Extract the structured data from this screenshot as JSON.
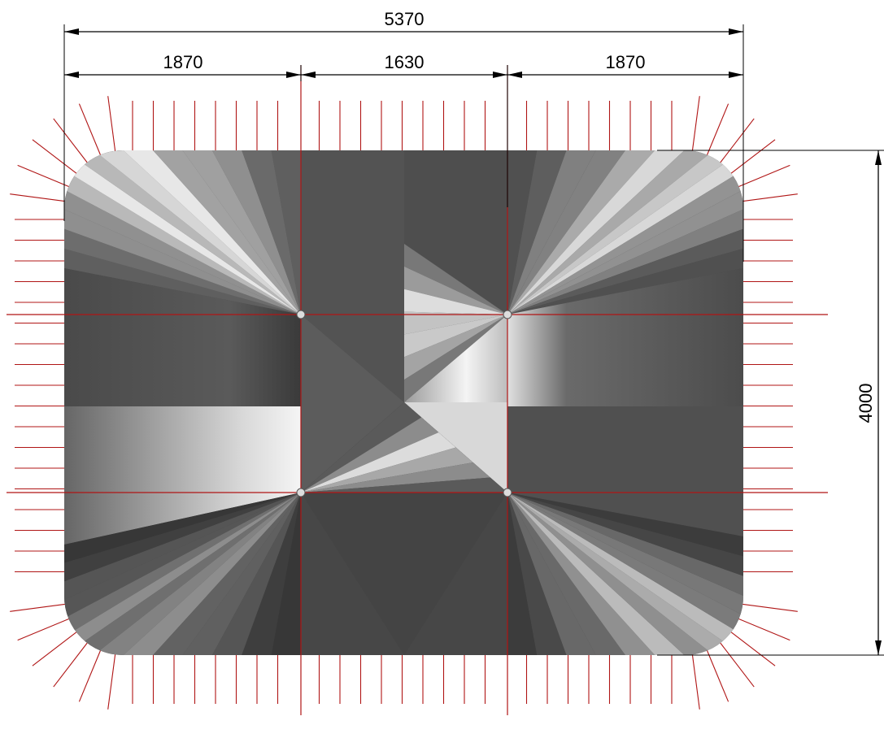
{
  "dimensions": {
    "overall_width": "5370",
    "left_span": "1870",
    "middle_span": "1630",
    "right_span": "1870",
    "overall_height": "4000"
  },
  "colors": {
    "dimension_lines": "#000000",
    "grid_lines": "#b01515",
    "membrane_dark": "#3e3e3e",
    "membrane_light": "#eeeeee",
    "node_fill": "#dddddd"
  }
}
